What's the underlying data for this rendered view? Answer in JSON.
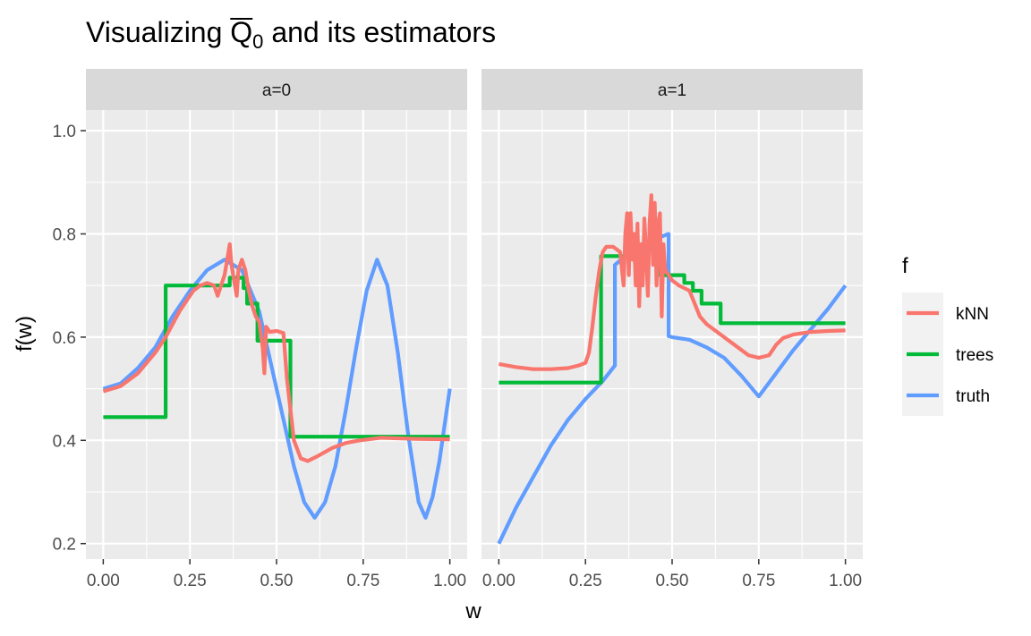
{
  "chart_data": {
    "type": "line",
    "title": "Visualizing Q0 and its estimators",
    "title_parts": {
      "prefix": "Visualizing ",
      "symbol": "Q",
      "subscript": "0",
      "suffix": " and its estimators"
    },
    "xlabel": "w",
    "ylabel": "f(w)",
    "xlim": [
      -0.05,
      1.05
    ],
    "ylim": [
      0.17,
      1.04
    ],
    "x_ticks": [
      0,
      0.25,
      0.5,
      0.75,
      1
    ],
    "x_tick_labels": [
      "0.00",
      "0.25",
      "0.50",
      "0.75",
      "1.00"
    ],
    "y_ticks": [
      0.2,
      0.4,
      0.6,
      0.8,
      1.0
    ],
    "y_tick_labels": [
      "0.2",
      "0.4",
      "0.6",
      "0.8",
      "1.0"
    ],
    "grid": true,
    "legend": {
      "title": "f",
      "position": "right",
      "entries": [
        {
          "name": "kNN",
          "color": "#F8766D"
        },
        {
          "name": "trees",
          "color": "#00BA38"
        },
        {
          "name": "truth",
          "color": "#619CFF"
        }
      ]
    },
    "panels": [
      {
        "label": "a=0",
        "series": [
          {
            "name": "truth",
            "color": "#619CFF",
            "points": [
              [
                0,
                0.5
              ],
              [
                0.05,
                0.51
              ],
              [
                0.1,
                0.54
              ],
              [
                0.15,
                0.58
              ],
              [
                0.2,
                0.64
              ],
              [
                0.25,
                0.69
              ],
              [
                0.3,
                0.73
              ],
              [
                0.35,
                0.75
              ],
              [
                0.4,
                0.73
              ],
              [
                0.45,
                0.65
              ],
              [
                0.5,
                0.5
              ],
              [
                0.55,
                0.35
              ],
              [
                0.58,
                0.28
              ],
              [
                0.61,
                0.25
              ],
              [
                0.64,
                0.28
              ],
              [
                0.67,
                0.35
              ],
              [
                0.7,
                0.46
              ],
              [
                0.73,
                0.58
              ],
              [
                0.76,
                0.69
              ],
              [
                0.79,
                0.75
              ],
              [
                0.82,
                0.7
              ],
              [
                0.85,
                0.57
              ],
              [
                0.88,
                0.41
              ],
              [
                0.91,
                0.28
              ],
              [
                0.93,
                0.25
              ],
              [
                0.95,
                0.29
              ],
              [
                0.97,
                0.36
              ],
              [
                1.0,
                0.5
              ]
            ]
          },
          {
            "name": "trees",
            "color": "#00BA38",
            "points": [
              [
                0,
                0.445
              ],
              [
                0.18,
                0.445
              ],
              [
                0.18,
                0.7
              ],
              [
                0.365,
                0.7
              ],
              [
                0.365,
                0.715
              ],
              [
                0.405,
                0.715
              ],
              [
                0.405,
                0.695
              ],
              [
                0.415,
                0.695
              ],
              [
                0.415,
                0.665
              ],
              [
                0.445,
                0.665
              ],
              [
                0.445,
                0.593
              ],
              [
                0.54,
                0.593
              ],
              [
                0.54,
                0.407
              ],
              [
                1.0,
                0.407
              ]
            ]
          },
          {
            "name": "kNN",
            "color": "#F8766D",
            "points": [
              [
                0,
                0.495
              ],
              [
                0.05,
                0.505
              ],
              [
                0.1,
                0.53
              ],
              [
                0.15,
                0.57
              ],
              [
                0.18,
                0.6
              ],
              [
                0.2,
                0.625
              ],
              [
                0.22,
                0.65
              ],
              [
                0.24,
                0.67
              ],
              [
                0.26,
                0.69
              ],
              [
                0.28,
                0.7
              ],
              [
                0.3,
                0.705
              ],
              [
                0.32,
                0.7
              ],
              [
                0.33,
                0.68
              ],
              [
                0.34,
                0.7
              ],
              [
                0.35,
                0.72
              ],
              [
                0.36,
                0.76
              ],
              [
                0.365,
                0.78
              ],
              [
                0.37,
                0.74
              ],
              [
                0.38,
                0.7
              ],
              [
                0.385,
                0.68
              ],
              [
                0.39,
                0.73
              ],
              [
                0.4,
                0.75
              ],
              [
                0.41,
                0.73
              ],
              [
                0.42,
                0.69
              ],
              [
                0.43,
                0.66
              ],
              [
                0.44,
                0.64
              ],
              [
                0.45,
                0.63
              ],
              [
                0.46,
                0.58
              ],
              [
                0.465,
                0.53
              ],
              [
                0.47,
                0.62
              ],
              [
                0.48,
                0.61
              ],
              [
                0.5,
                0.612
              ],
              [
                0.52,
                0.608
              ],
              [
                0.53,
                0.52
              ],
              [
                0.55,
                0.4
              ],
              [
                0.57,
                0.365
              ],
              [
                0.59,
                0.36
              ],
              [
                0.62,
                0.37
              ],
              [
                0.66,
                0.385
              ],
              [
                0.7,
                0.395
              ],
              [
                0.74,
                0.4
              ],
              [
                0.8,
                0.405
              ],
              [
                0.9,
                0.403
              ],
              [
                1.0,
                0.402
              ]
            ]
          }
        ]
      },
      {
        "label": "a=1",
        "series": [
          {
            "name": "truth",
            "color": "#619CFF",
            "points": [
              [
                0,
                0.2
              ],
              [
                0.05,
                0.27
              ],
              [
                0.1,
                0.33
              ],
              [
                0.15,
                0.39
              ],
              [
                0.2,
                0.44
              ],
              [
                0.25,
                0.48
              ],
              [
                0.3,
                0.515
              ],
              [
                0.335,
                0.545
              ],
              [
                0.335,
                0.74
              ],
              [
                0.37,
                0.76
              ],
              [
                0.4,
                0.775
              ],
              [
                0.45,
                0.79
              ],
              [
                0.49,
                0.8
              ],
              [
                0.49,
                0.602
              ],
              [
                0.5,
                0.6
              ],
              [
                0.55,
                0.595
              ],
              [
                0.6,
                0.58
              ],
              [
                0.65,
                0.56
              ],
              [
                0.7,
                0.525
              ],
              [
                0.75,
                0.485
              ],
              [
                0.8,
                0.53
              ],
              [
                0.85,
                0.575
              ],
              [
                0.9,
                0.615
              ],
              [
                0.95,
                0.655
              ],
              [
                1.0,
                0.7
              ]
            ]
          },
          {
            "name": "trees",
            "color": "#00BA38",
            "points": [
              [
                0,
                0.512
              ],
              [
                0.295,
                0.512
              ],
              [
                0.295,
                0.757
              ],
              [
                0.375,
                0.757
              ],
              [
                0.375,
                0.77
              ],
              [
                0.465,
                0.77
              ],
              [
                0.465,
                0.72
              ],
              [
                0.535,
                0.72
              ],
              [
                0.535,
                0.705
              ],
              [
                0.56,
                0.705
              ],
              [
                0.56,
                0.69
              ],
              [
                0.585,
                0.69
              ],
              [
                0.585,
                0.665
              ],
              [
                0.64,
                0.665
              ],
              [
                0.64,
                0.627
              ],
              [
                1.0,
                0.627
              ]
            ]
          },
          {
            "name": "kNN",
            "color": "#F8766D",
            "points": [
              [
                0,
                0.548
              ],
              [
                0.05,
                0.542
              ],
              [
                0.1,
                0.538
              ],
              [
                0.15,
                0.538
              ],
              [
                0.2,
                0.54
              ],
              [
                0.23,
                0.545
              ],
              [
                0.25,
                0.55
              ],
              [
                0.26,
                0.57
              ],
              [
                0.27,
                0.62
              ],
              [
                0.28,
                0.68
              ],
              [
                0.29,
                0.73
              ],
              [
                0.3,
                0.765
              ],
              [
                0.31,
                0.775
              ],
              [
                0.33,
                0.775
              ],
              [
                0.35,
                0.765
              ],
              [
                0.36,
                0.7
              ],
              [
                0.365,
                0.8
              ],
              [
                0.37,
                0.84
              ],
              [
                0.375,
                0.72
              ],
              [
                0.38,
                0.84
              ],
              [
                0.385,
                0.75
              ],
              [
                0.39,
                0.8
              ],
              [
                0.395,
                0.7
              ],
              [
                0.4,
                0.82
              ],
              [
                0.405,
                0.66
              ],
              [
                0.41,
                0.78
              ],
              [
                0.415,
                0.7
              ],
              [
                0.42,
                0.83
              ],
              [
                0.425,
                0.76
              ],
              [
                0.43,
                0.68
              ],
              [
                0.435,
                0.82
              ],
              [
                0.44,
                0.875
              ],
              [
                0.445,
                0.74
              ],
              [
                0.45,
                0.86
              ],
              [
                0.455,
                0.7
              ],
              [
                0.46,
                0.82
              ],
              [
                0.465,
                0.84
              ],
              [
                0.47,
                0.64
              ],
              [
                0.475,
                0.78
              ],
              [
                0.48,
                0.73
              ],
              [
                0.49,
                0.72
              ],
              [
                0.5,
                0.71
              ],
              [
                0.52,
                0.7
              ],
              [
                0.55,
                0.69
              ],
              [
                0.58,
                0.64
              ],
              [
                0.6,
                0.625
              ],
              [
                0.65,
                0.6
              ],
              [
                0.7,
                0.575
              ],
              [
                0.72,
                0.565
              ],
              [
                0.75,
                0.56
              ],
              [
                0.78,
                0.565
              ],
              [
                0.8,
                0.585
              ],
              [
                0.82,
                0.598
              ],
              [
                0.85,
                0.605
              ],
              [
                0.9,
                0.61
              ],
              [
                0.95,
                0.612
              ],
              [
                1.0,
                0.613
              ]
            ]
          }
        ]
      }
    ]
  }
}
